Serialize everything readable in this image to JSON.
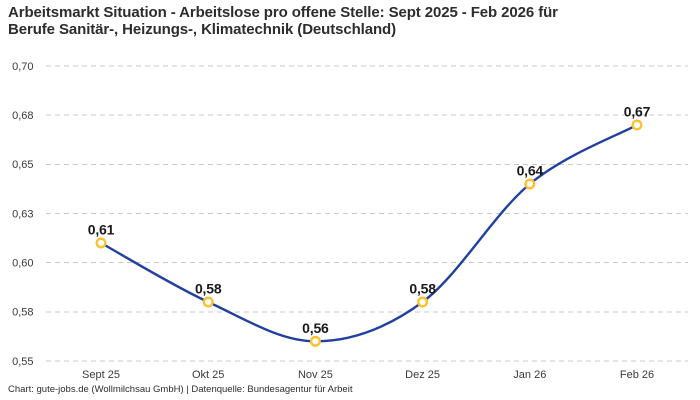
{
  "header": {
    "title_line1": "Arbeitsmarkt Situation - Arbeitslose pro offene Stelle: Sept 2025 - Feb 2026 für",
    "title_line2": "Berufe Sanitär-, Heizungs-, Klimatechnik (Deutschland)"
  },
  "footer": {
    "attribution": "Chart: gute-jobs.de (Wollmilchsau GmbH) | Datenquelle: Bundesagentur für Arbeit"
  },
  "chart_data": {
    "type": "line",
    "title": "Arbeitsmarkt Situation - Arbeitslose pro offene Stelle: Sept 2025 - Feb 2026 für Berufe Sanitär-, Heizungs-, Klimatechnik (Deutschland)",
    "categories": [
      "Sept 25",
      "Okt 25",
      "Nov 25",
      "Dez 25",
      "Jan 26",
      "Feb 26"
    ],
    "values": [
      0.61,
      0.58,
      0.56,
      0.58,
      0.64,
      0.67
    ],
    "point_labels": [
      "0,61",
      "0,58",
      "0,56",
      "0,58",
      "0,64",
      "0,67"
    ],
    "xlabel": "",
    "ylabel": "",
    "ylim": [
      0.55,
      0.7
    ],
    "yticks": [
      {
        "value": 0.55,
        "label": "0,55"
      },
      {
        "value": 0.575,
        "label": "0,58"
      },
      {
        "value": 0.6,
        "label": "0,60"
      },
      {
        "value": 0.625,
        "label": "0,63"
      },
      {
        "value": 0.65,
        "label": "0,65"
      },
      {
        "value": 0.675,
        "label": "0,68"
      },
      {
        "value": 0.7,
        "label": "0,70"
      }
    ],
    "grid": "horizontal-dashed",
    "legend": "none",
    "curve": "smooth",
    "colors": {
      "line": "#21409f",
      "marker_ring": "#fbc22f",
      "marker_fill": "#ffffff",
      "grid": "#c9c9c9",
      "axis_text": "#3a3a3a",
      "label_text": "#1a1a1a",
      "title_text": "#2d2d2d",
      "background": "#ffffff"
    }
  }
}
